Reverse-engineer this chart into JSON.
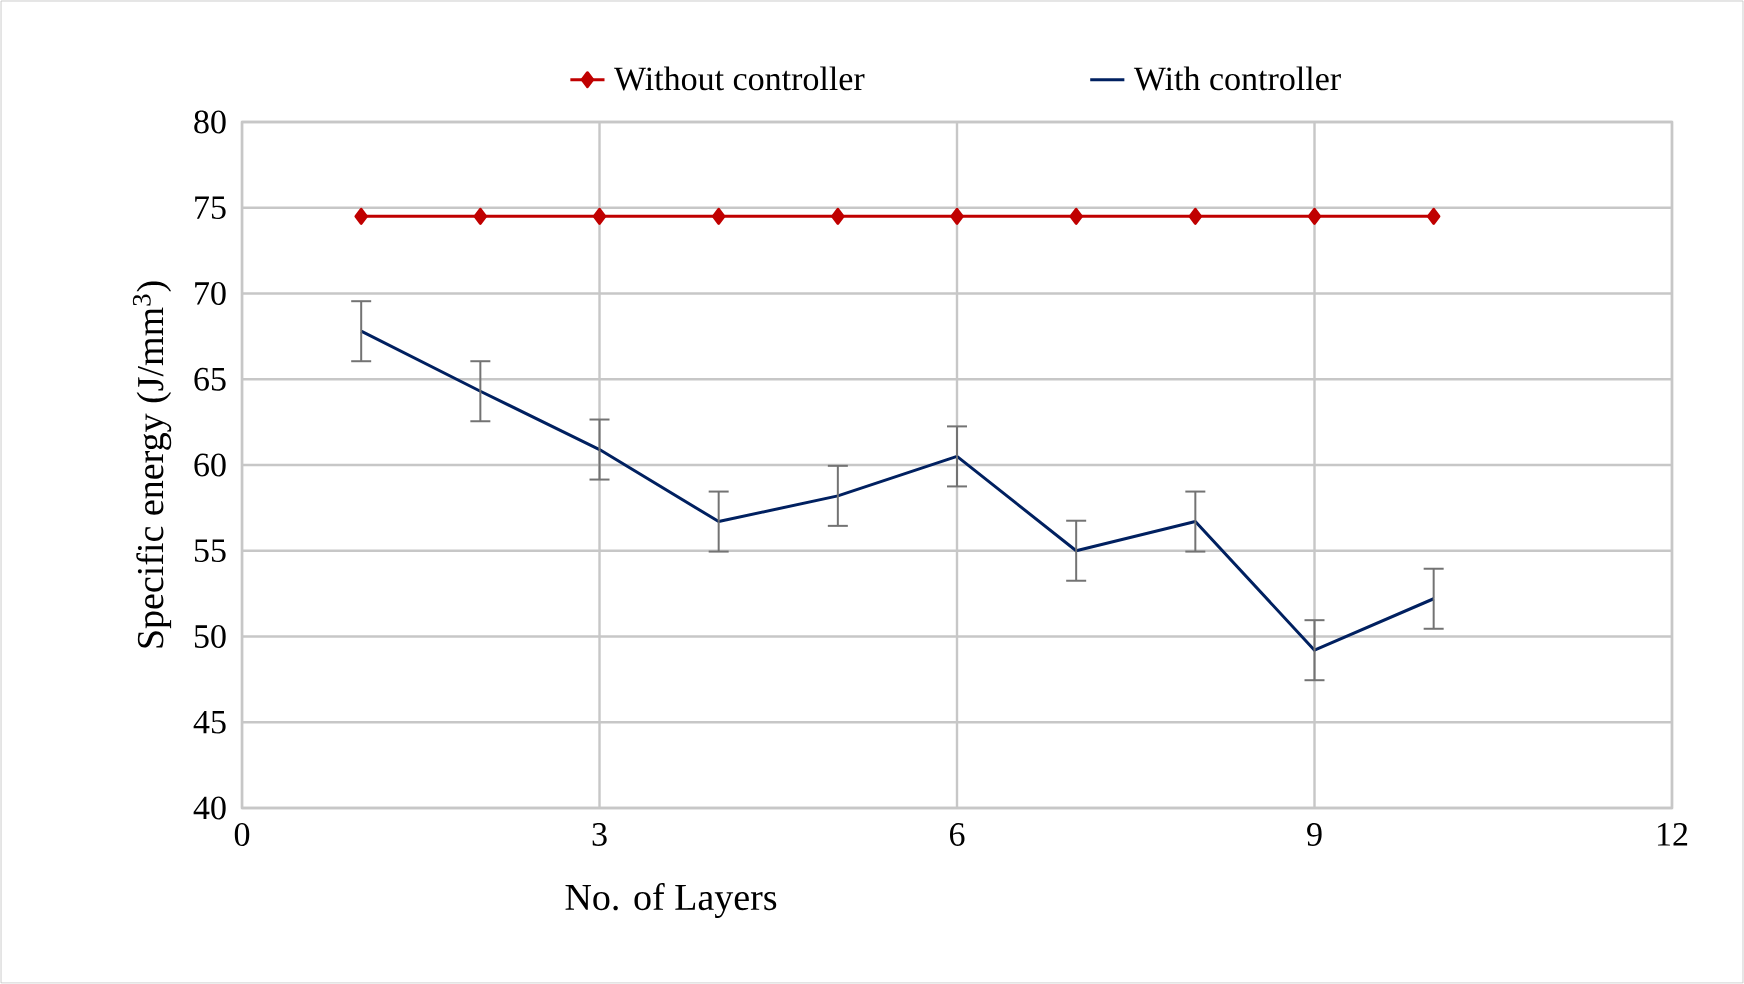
{
  "chart_data": {
    "type": "line",
    "xlabel": "No. of Layers",
    "ylabel": "Specific energy (J/mm$^{3}$)",
    "x": [
      1,
      2,
      3,
      4,
      5,
      6,
      7,
      8,
      9,
      10
    ],
    "series": [
      {
        "name": "Without controller",
        "color": "#c00000",
        "marker": "diamond",
        "values": [
          74.5,
          74.5,
          74.5,
          74.5,
          74.5,
          74.5,
          74.5,
          74.5,
          74.5,
          74.5
        ]
      },
      {
        "name": "With controller",
        "color": "#002060",
        "marker": "none",
        "values": [
          67.8,
          64.3,
          60.9,
          56.7,
          58.2,
          60.5,
          55.0,
          56.7,
          49.2,
          52.2
        ],
        "errors": [
          1.75,
          1.75,
          1.75,
          1.75,
          1.75,
          1.75,
          1.75,
          1.75,
          1.75,
          1.75
        ]
      }
    ],
    "xlim": [
      0,
      12
    ],
    "xticks": [
      0,
      3,
      6,
      9,
      12
    ],
    "ylim": [
      40,
      80
    ],
    "yticks": [
      40,
      45,
      50,
      55,
      60,
      65,
      70,
      75,
      80
    ],
    "grid": true,
    "legend": "top",
    "line_style": "solid"
  }
}
